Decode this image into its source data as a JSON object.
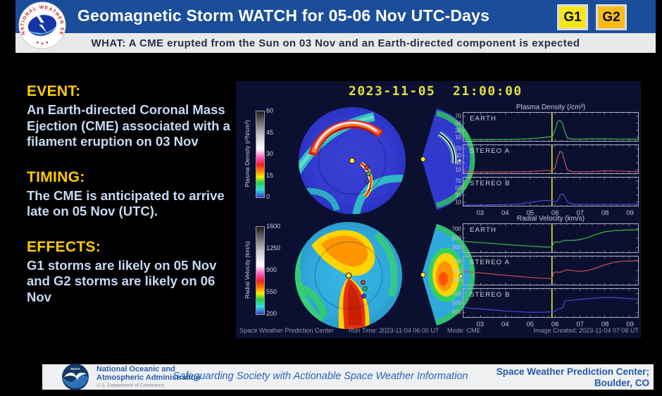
{
  "theme": {
    "header_blue": "#1b4e9a",
    "heading_yellow": "#ffcb00",
    "g1_yellow": "#f6e71d",
    "g2_amber": "#fbbb17",
    "marker_yellow": "#e8e83a"
  },
  "header": {
    "title": "Geomagnetic Storm WATCH for 05-06 Nov UTC-Days",
    "what_line": "WHAT: A CME erupted from the Sun on 03 Nov and an Earth-directed component is expected",
    "nws_ring_text": "NATIONAL WEATHER SERVICE",
    "badges": [
      {
        "label": "G1"
      },
      {
        "label": "G2"
      }
    ]
  },
  "sections": [
    {
      "heading": "EVENT:",
      "body": "An Earth-directed Coronal Mass Ejection (CME) associated with a filament eruption on 03 Nov"
    },
    {
      "heading": "TIMING:",
      "body": "The CME is anticipated to arrive late on 05 Nov (UTC)."
    },
    {
      "heading": "EFFECTS:",
      "body": "G1 storms are likely on 05 Nov and G2 storms are likely on 06 Nov"
    }
  ],
  "model": {
    "timestamp": "2023-11-05  21:00:00",
    "density_colorbar": {
      "label": "Plasma Density (r²N/cm³)",
      "ticks": [
        60,
        45,
        30,
        15,
        0
      ]
    },
    "velocity_colorbar": {
      "label": "Radial Velocity (km/s)",
      "ticks": [
        1600,
        1250,
        900,
        550,
        200
      ]
    },
    "caption": {
      "left": "Space Weather Prediction Center",
      "run_time": "Run Time: 2023-11-04 06:00 UT",
      "mode": "Mode: CME",
      "created": "Image Created: 2023-11-04 07:08 UT"
    }
  },
  "footer": {
    "noaa_line1": "National Oceanic and",
    "noaa_line2": "Atmospheric Administration",
    "noaa_dept": "U.S. Department of Commerce",
    "noaa_logo_text": "NOAA",
    "tagline": "Safeguarding Society with Actionable Space Weather Information",
    "swpc_line1": "Space Weather Prediction Center;",
    "swpc_line2": "Boulder, CO"
  },
  "chart_data": [
    {
      "type": "line",
      "title": "Plasma Density (/cm³)",
      "xlim": [
        2.3,
        9.35
      ],
      "ylim": [
        0,
        80
      ],
      "y_ticks": [
        70,
        50,
        30,
        10
      ],
      "marker_x": 5.875,
      "marker_color": "#e8e83a",
      "x_ticks": [
        {
          "label": "03",
          "value": 3
        },
        {
          "label": "04",
          "value": 4
        },
        {
          "label": "05",
          "value": 5
        },
        {
          "label": "06",
          "value": 6
        },
        {
          "label": "07",
          "value": 7
        },
        {
          "label": "08",
          "value": 8
        },
        {
          "label": "09",
          "value": 9
        }
      ],
      "series": [
        {
          "label": "EARTH",
          "color": "#3dbb4a",
          "x": [
            2.3,
            3,
            3.5,
            4,
            4.5,
            5,
            5.3,
            5.6,
            5.8,
            5.9,
            6.0,
            6.1,
            6.2,
            6.3,
            6.4,
            6.5,
            6.7,
            7,
            7.5,
            8,
            8.5,
            9,
            9.35
          ],
          "y": [
            4,
            4,
            4,
            4.5,
            5,
            6.5,
            8,
            10,
            12,
            14,
            30,
            55,
            58,
            50,
            25,
            8,
            5,
            5,
            6,
            6,
            5.5,
            5,
            5
          ]
        },
        {
          "label": "STEREO A",
          "color": "#c65050",
          "x": [
            2.3,
            3,
            3.5,
            4,
            4.5,
            5,
            5.3,
            5.6,
            5.8,
            5.9,
            6.0,
            6.1,
            6.2,
            6.3,
            6.4,
            6.5,
            6.7,
            7,
            7.5,
            8,
            8.5,
            9,
            9.35
          ],
          "y": [
            4,
            4,
            4,
            4,
            4.5,
            5,
            6.5,
            8,
            8,
            9,
            15,
            45,
            63,
            58,
            30,
            10,
            5,
            4.5,
            5,
            7,
            6.5,
            5.5,
            5
          ]
        },
        {
          "label": "STEREO B",
          "color": "#4848d8",
          "x": [
            2.3,
            3,
            3.5,
            4,
            4.5,
            5,
            5.3,
            5.6,
            5.8,
            5.9,
            6.0,
            6.1,
            6.2,
            6.3,
            6.4,
            6.5,
            6.7,
            7,
            7.5,
            8,
            8.5,
            9,
            9.35
          ],
          "y": [
            2,
            2.5,
            3,
            3.5,
            5,
            9,
            13,
            15,
            14,
            12,
            11,
            14,
            30,
            34,
            25,
            10,
            5,
            4,
            4,
            4,
            4,
            4,
            4
          ]
        }
      ]
    },
    {
      "type": "line",
      "title": "Radial Velocity (km/s)",
      "xlim": [
        2.3,
        9.35
      ],
      "ylim": [
        200,
        800
      ],
      "y_ticks": [
        700,
        500,
        300
      ],
      "marker_x": 5.875,
      "marker_color": "#e8e83a",
      "x_ticks": [
        {
          "label": "03",
          "value": 3
        },
        {
          "label": "04",
          "value": 4
        },
        {
          "label": "05",
          "value": 5
        },
        {
          "label": "06",
          "value": 6
        },
        {
          "label": "07",
          "value": 7
        },
        {
          "label": "08",
          "value": 8
        },
        {
          "label": "09",
          "value": 9
        }
      ],
      "series": [
        {
          "label": "EARTH",
          "color": "#3dbb4a",
          "x": [
            2.3,
            3,
            3.5,
            4,
            4.5,
            5,
            5.4,
            5.8,
            5.88,
            5.95,
            6.05,
            6.15,
            6.25,
            6.35,
            6.5,
            6.8,
            7,
            7.3,
            7.6,
            8,
            8.4,
            8.8,
            9.35
          ],
          "y": [
            430,
            405,
            385,
            365,
            345,
            330,
            318,
            310,
            310,
            415,
            420,
            412,
            425,
            455,
            450,
            455,
            470,
            510,
            570,
            635,
            660,
            672,
            678
          ]
        },
        {
          "label": "STEREO A",
          "color": "#c65050",
          "x": [
            2.3,
            3,
            3.5,
            4,
            4.5,
            5,
            5.4,
            5.8,
            5.88,
            5.95,
            6.05,
            6.15,
            6.25,
            6.35,
            6.5,
            6.8,
            7,
            7.3,
            7.6,
            8,
            8.4,
            8.8,
            9.35
          ],
          "y": [
            480,
            450,
            425,
            400,
            375,
            355,
            340,
            330,
            330,
            460,
            470,
            462,
            470,
            495,
            515,
            495,
            482,
            500,
            545,
            620,
            680,
            700,
            710
          ]
        },
        {
          "label": "STEREO B",
          "color": "#4848d8",
          "x": [
            2.3,
            3,
            3.5,
            4,
            4.5,
            5,
            5.4,
            5.8,
            6.0,
            6.1,
            6.2,
            6.3,
            6.4,
            6.5,
            6.8,
            7,
            7.5,
            8,
            8.5,
            9,
            9.35
          ],
          "y": [
            400,
            372,
            352,
            330,
            315,
            302,
            300,
            312,
            322,
            370,
            382,
            390,
            540,
            548,
            565,
            575,
            600,
            618,
            612,
            595,
            585
          ]
        }
      ]
    }
  ]
}
